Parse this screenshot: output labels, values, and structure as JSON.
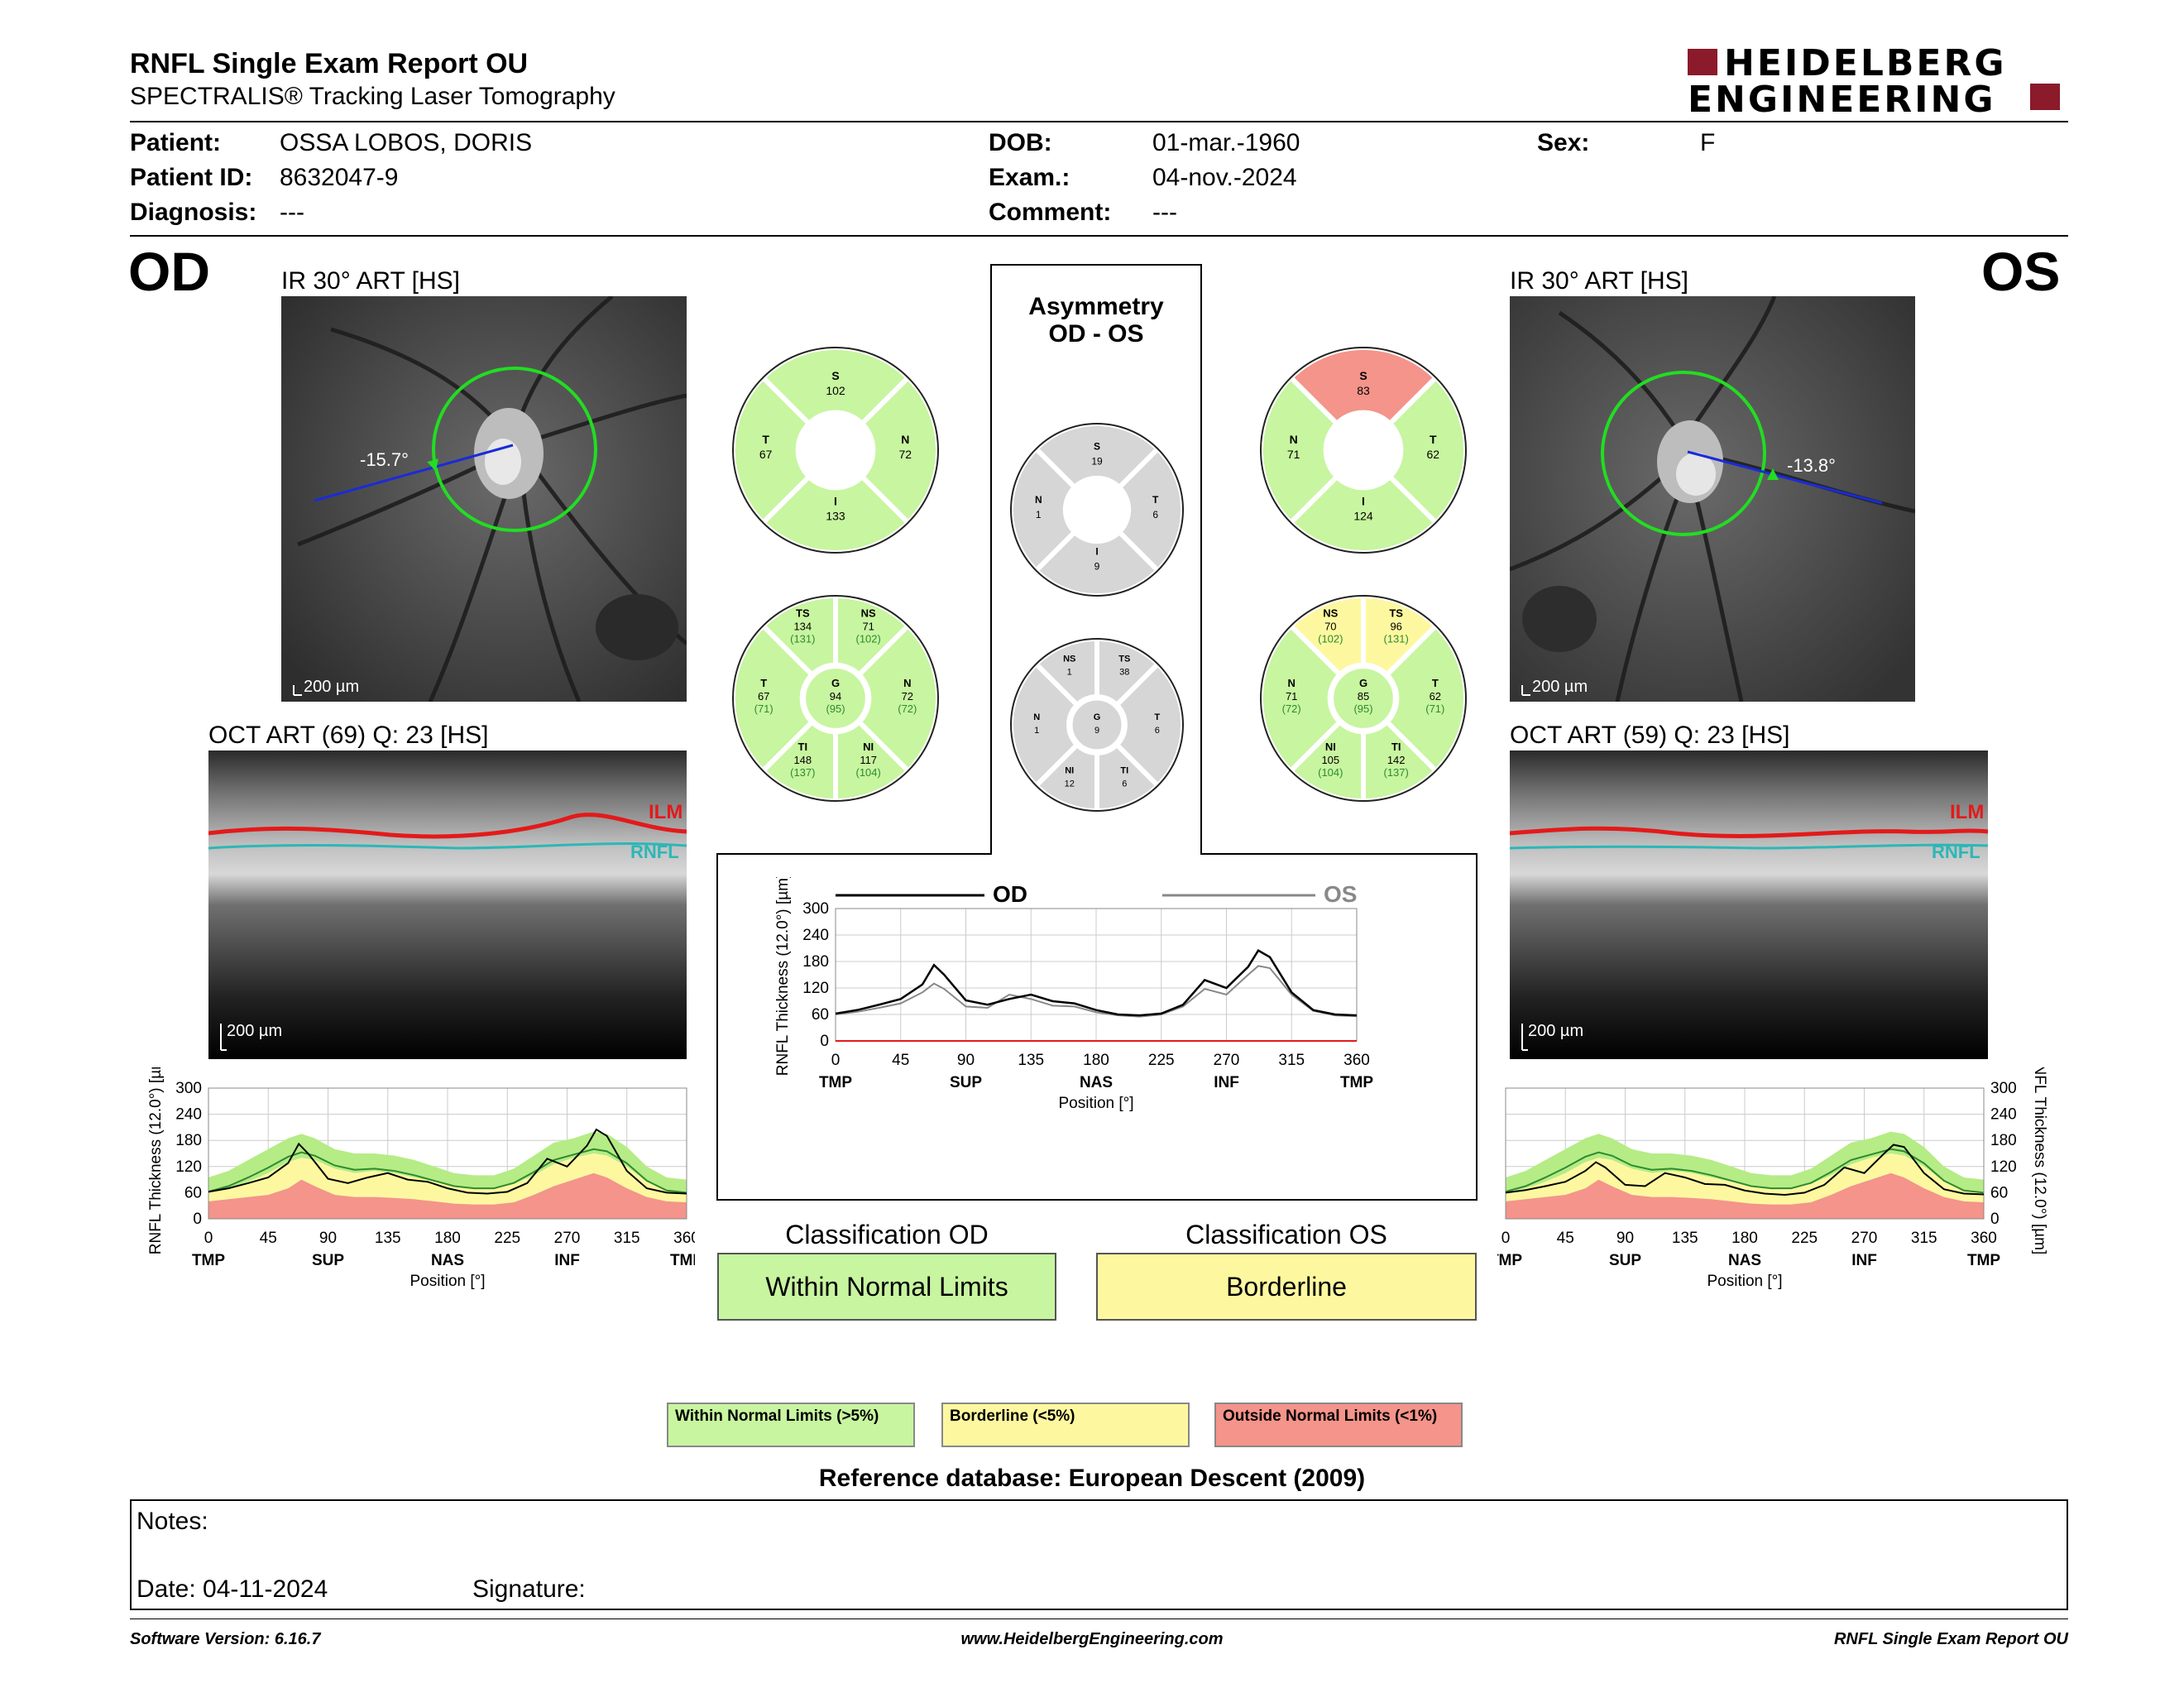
{
  "header": {
    "title": "RNFL Single Exam Report OU",
    "subtitle": "SPECTRALIS® Tracking Laser Tomography",
    "logo_line1": "HEIDELBERG",
    "logo_line2": "ENGINEERING"
  },
  "patient": {
    "patient_label": "Patient:",
    "patient_value": "OSSA LOBOS, DORIS",
    "id_label": "Patient ID:",
    "id_value": "8632047-9",
    "diag_label": "Diagnosis:",
    "diag_value": "---",
    "dob_label": "DOB:",
    "dob_value": "01-mar.-1960",
    "exam_label": "Exam.:",
    "exam_value": "04-nov.-2024",
    "comment_label": "Comment:",
    "comment_value": "---",
    "sex_label": "Sex:",
    "sex_value": "F"
  },
  "od": {
    "eye": "OD",
    "ir_title": "IR 30° ART [HS]",
    "angle": "-15.7°",
    "scale": "200 µm",
    "oct_title": "OCT ART (69) Q: 23 [HS]",
    "oct_scale": "200 µm",
    "ilm": "ILM",
    "rnfl": "RNFL"
  },
  "os": {
    "eye": "OS",
    "ir_title": "IR 30° ART [HS]",
    "angle": "-13.8°",
    "scale": "200 µm",
    "oct_title": "OCT ART (59) Q: 23 [HS]",
    "oct_scale": "200 µm",
    "ilm": "ILM",
    "rnfl": "RNFL"
  },
  "asym": {
    "title1": "Asymmetry",
    "title2": "OD - OS"
  },
  "sectors": {
    "od4": {
      "S": "102",
      "T": "67",
      "N": "72",
      "I": "133"
    },
    "os4": {
      "S": "83",
      "N": "71",
      "T": "62",
      "I": "124"
    },
    "asym4": {
      "S": "19",
      "N": "1",
      "T": "6",
      "I": "9"
    },
    "od6": {
      "TS": [
        "134",
        "(131)"
      ],
      "NS": [
        "71",
        "(102)"
      ],
      "T": [
        "67",
        "(71)"
      ],
      "G": [
        "94",
        "(95)"
      ],
      "N": [
        "72",
        "(72)"
      ],
      "TI": [
        "148",
        "(137)"
      ],
      "NI": [
        "117",
        "(104)"
      ]
    },
    "os6": {
      "NS": [
        "70",
        "(102)"
      ],
      "TS": [
        "96",
        "(131)"
      ],
      "N": [
        "71",
        "(72)"
      ],
      "G": [
        "85",
        "(95)"
      ],
      "T": [
        "62",
        "(71)"
      ],
      "NI": [
        "105",
        "(104)"
      ],
      "TI": [
        "142",
        "(137)"
      ]
    },
    "asym6": {
      "NS": "1",
      "TS": "38",
      "N": "1",
      "G": "9",
      "T": "6",
      "NI": "12",
      "TI": "6"
    }
  },
  "chart_labels": {
    "ylabel": "RNFL Thickness (12.0°) [µm]",
    "xlabel": "Position [°]",
    "od_legend": "OD",
    "os_legend": "OS"
  },
  "chart_data": [
    {
      "type": "line",
      "name": "OD profile",
      "ylim": [
        0,
        300
      ],
      "xlim": [
        0,
        360
      ],
      "yticks": [
        0,
        60,
        120,
        180,
        240,
        300
      ],
      "xticks": [
        0,
        45,
        90,
        135,
        180,
        225,
        270,
        315,
        360
      ],
      "xcat": [
        "TMP",
        "SUP",
        "NAS",
        "INF",
        "TMP"
      ],
      "x": [
        0,
        15,
        30,
        45,
        60,
        68,
        75,
        90,
        105,
        120,
        135,
        150,
        165,
        180,
        195,
        210,
        225,
        240,
        255,
        270,
        285,
        292,
        300,
        315,
        330,
        345,
        360
      ],
      "series": [
        {
          "values": [
            62,
            70,
            82,
            95,
            128,
            172,
            150,
            92,
            82,
            95,
            105,
            90,
            85,
            70,
            60,
            58,
            62,
            82,
            138,
            120,
            168,
            205,
            190,
            110,
            70,
            60,
            58
          ]
        }
      ]
    },
    {
      "type": "line",
      "name": "OS profile",
      "ylim": [
        0,
        300
      ],
      "xlim": [
        0,
        360
      ],
      "yticks": [
        0,
        60,
        120,
        180,
        240,
        300
      ],
      "xticks": [
        0,
        45,
        90,
        135,
        180,
        225,
        270,
        315,
        360
      ],
      "xcat": [
        "TMP",
        "SUP",
        "NAS",
        "INF",
        "TMP"
      ],
      "x": [
        0,
        15,
        30,
        45,
        60,
        68,
        75,
        90,
        105,
        120,
        135,
        150,
        165,
        180,
        195,
        210,
        225,
        240,
        255,
        270,
        285,
        292,
        300,
        315,
        330,
        345,
        360
      ],
      "series": [
        {
          "values": [
            60,
            66,
            75,
            85,
            110,
            130,
            118,
            78,
            75,
            105,
            95,
            80,
            78,
            65,
            58,
            55,
            60,
            78,
            118,
            105,
            150,
            170,
            165,
            105,
            68,
            58,
            56
          ]
        }
      ]
    }
  ],
  "classification": {
    "od_label": "Classification OD",
    "od_value": "Within Normal Limits",
    "os_label": "Classification OS",
    "os_value": "Borderline"
  },
  "legend": {
    "wnl": "Within Normal Limits (>5%)",
    "bl": "Borderline (<5%)",
    "onl": "Outside Normal Limits (<1%)"
  },
  "reference": "Reference database: European Descent (2009)",
  "notes": {
    "label": "Notes:",
    "date_label": "Date: 04-11-2024",
    "signature_label": "Signature:"
  },
  "footer": {
    "version": "Software Version: 6.16.7",
    "url": "www.HeidelbergEngineering.com",
    "report": "RNFL Single Exam Report OU"
  },
  "colors": {
    "green": "#c8f5a0",
    "yellow": "#fdf8a0",
    "red": "#f4948a",
    "gray": "#d6d6d6",
    "logo_red": "#8b1a2a"
  }
}
